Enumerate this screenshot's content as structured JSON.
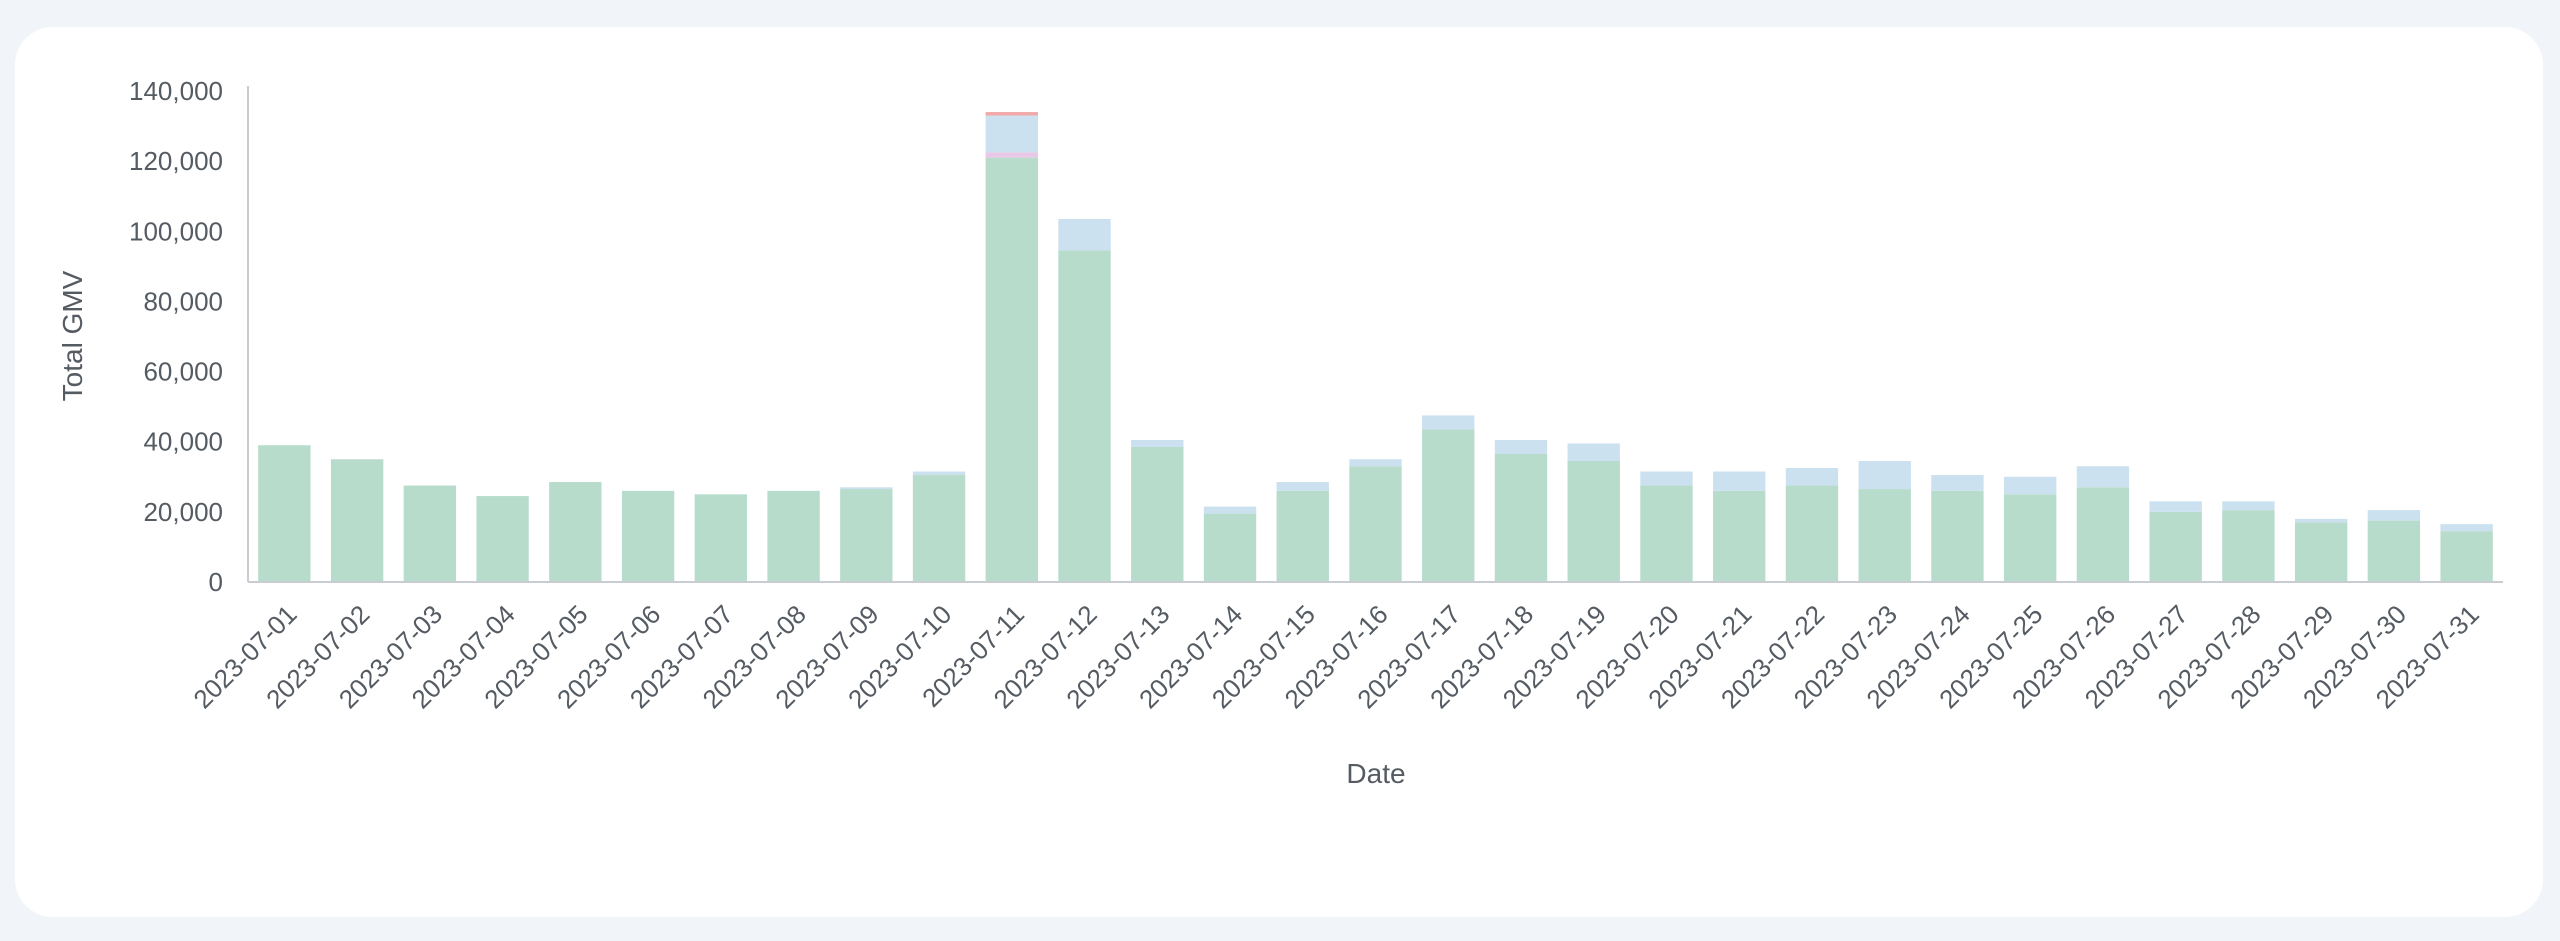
{
  "colors": {
    "background": "#f1f5f9",
    "card": "#ffffff",
    "axis": "#c9cdd1",
    "text": "#555b62"
  },
  "chart_data": {
    "type": "bar",
    "stacked": true,
    "xlabel": "Date",
    "ylabel": "Total GMV",
    "ylim": [
      0,
      140000
    ],
    "yticks": [
      0,
      20000,
      40000,
      60000,
      80000,
      100000,
      120000,
      140000
    ],
    "ytick_labels": [
      "0",
      "20,000",
      "40,000",
      "60,000",
      "80,000",
      "100,000",
      "120,000",
      "140,000"
    ],
    "grid": false,
    "legend": "none",
    "categories": [
      "2023-07-01",
      "2023-07-02",
      "2023-07-03",
      "2023-07-04",
      "2023-07-05",
      "2023-07-06",
      "2023-07-07",
      "2023-07-08",
      "2023-07-09",
      "2023-07-10",
      "2023-07-11",
      "2023-07-12",
      "2023-07-13",
      "2023-07-14",
      "2023-07-15",
      "2023-07-16",
      "2023-07-17",
      "2023-07-18",
      "2023-07-19",
      "2023-07-20",
      "2023-07-21",
      "2023-07-22",
      "2023-07-23",
      "2023-07-24",
      "2023-07-25",
      "2023-07-26",
      "2023-07-27",
      "2023-07-28",
      "2023-07-29",
      "2023-07-30",
      "2023-07-31"
    ],
    "series": [
      {
        "color": "#b8dccb",
        "values": [
          39000,
          35000,
          27500,
          24500,
          28500,
          26000,
          25000,
          26000,
          26500,
          30500,
          121000,
          94500,
          38500,
          19500,
          26000,
          33000,
          43500,
          36500,
          34500,
          27500,
          26000,
          27500,
          26500,
          26000,
          25000,
          27000,
          20000,
          20500,
          17000,
          17500,
          14500
        ]
      },
      {
        "color": "#e9c7e7",
        "values": [
          0,
          0,
          0,
          0,
          0,
          0,
          0,
          0,
          0,
          0,
          1500,
          0,
          0,
          0,
          0,
          0,
          0,
          0,
          0,
          0,
          0,
          0,
          0,
          0,
          0,
          0,
          0,
          0,
          0,
          0,
          0
        ]
      },
      {
        "color": "#cbe1ef",
        "values": [
          0,
          0,
          0,
          0,
          0,
          0,
          0,
          0,
          500,
          1000,
          10500,
          9000,
          2000,
          2000,
          2500,
          2000,
          4000,
          4000,
          5000,
          4000,
          5500,
          5000,
          8000,
          4500,
          5000,
          6000,
          3000,
          2500,
          1000,
          3000,
          2000
        ]
      },
      {
        "color": "#f2a9a9",
        "values": [
          0,
          0,
          0,
          0,
          0,
          0,
          0,
          0,
          0,
          0,
          1000,
          0,
          0,
          0,
          0,
          0,
          0,
          0,
          0,
          0,
          0,
          0,
          0,
          0,
          0,
          0,
          0,
          0,
          0,
          0,
          0
        ]
      }
    ]
  }
}
